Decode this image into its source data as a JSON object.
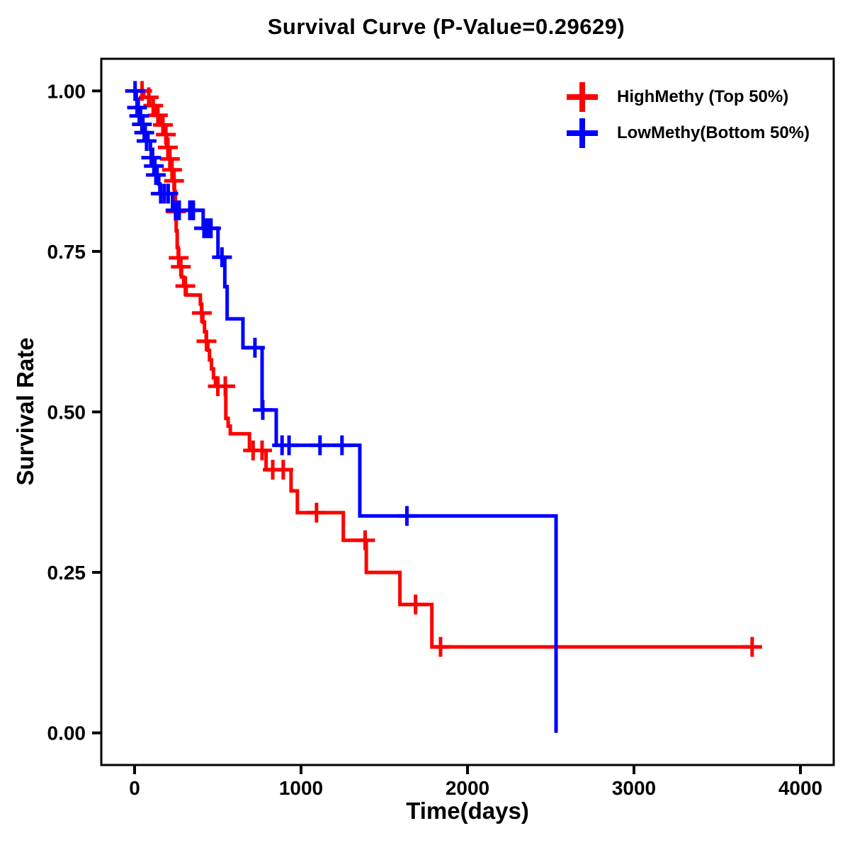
{
  "title": "Survival Curve (P-Value=0.29629)",
  "p_value": "0.29629",
  "chart_data": {
    "type": "line",
    "subtype": "kaplan-meier-step-curve",
    "title": "Survival Curve (P-Value=0.29629)",
    "xlabel": "Time(days)",
    "ylabel": "Survival Rate",
    "xlim": [
      -200,
      4200
    ],
    "ylim": [
      -0.05,
      1.05
    ],
    "grid": "off",
    "legend_position": "top-right-inside",
    "x_ticks": [
      {
        "value": 0,
        "label": "0"
      },
      {
        "value": 1000,
        "label": "1000"
      },
      {
        "value": 2000,
        "label": "2000"
      },
      {
        "value": 3000,
        "label": "3000"
      },
      {
        "value": 4000,
        "label": "4000"
      }
    ],
    "y_ticks": [
      {
        "value": 0.0,
        "label": "0.00"
      },
      {
        "value": 0.25,
        "label": "0.25"
      },
      {
        "value": 0.5,
        "label": "0.50"
      },
      {
        "value": 0.75,
        "label": "0.75"
      },
      {
        "value": 1.0,
        "label": "1.00"
      }
    ],
    "series": [
      {
        "name": "HighMethy (Top 50%)",
        "color": "#FF0000",
        "end_time": 3722,
        "steps": [
          [
            0,
            1.0
          ],
          [
            55,
            0.99
          ],
          [
            90,
            0.977
          ],
          [
            120,
            0.962
          ],
          [
            150,
            0.947
          ],
          [
            178,
            0.932
          ],
          [
            192,
            0.912
          ],
          [
            205,
            0.894
          ],
          [
            218,
            0.877
          ],
          [
            230,
            0.86
          ],
          [
            240,
            0.843
          ],
          [
            245,
            0.812
          ],
          [
            250,
            0.782
          ],
          [
            256,
            0.756
          ],
          [
            262,
            0.74
          ],
          [
            270,
            0.726
          ],
          [
            282,
            0.71
          ],
          [
            295,
            0.696
          ],
          [
            310,
            0.682
          ],
          [
            395,
            0.668
          ],
          [
            402,
            0.654
          ],
          [
            410,
            0.64
          ],
          [
            420,
            0.625
          ],
          [
            430,
            0.61
          ],
          [
            440,
            0.596
          ],
          [
            450,
            0.581
          ],
          [
            462,
            0.567
          ],
          [
            474,
            0.553
          ],
          [
            486,
            0.54
          ],
          [
            548,
            0.49
          ],
          [
            562,
            0.478
          ],
          [
            575,
            0.466
          ],
          [
            690,
            0.44
          ],
          [
            790,
            0.41
          ],
          [
            940,
            0.377
          ],
          [
            978,
            0.343
          ],
          [
            1254,
            0.3
          ],
          [
            1392,
            0.25
          ],
          [
            1594,
            0.2
          ],
          [
            1786,
            0.134
          ]
        ],
        "censors": [
          [
            45,
            1.0
          ],
          [
            85,
            0.99
          ],
          [
            112,
            0.977
          ],
          [
            140,
            0.962
          ],
          [
            170,
            0.947
          ],
          [
            188,
            0.932
          ],
          [
            200,
            0.912
          ],
          [
            212,
            0.894
          ],
          [
            225,
            0.877
          ],
          [
            237,
            0.86
          ],
          [
            248,
            0.812
          ],
          [
            265,
            0.74
          ],
          [
            278,
            0.726
          ],
          [
            305,
            0.696
          ],
          [
            404,
            0.654
          ],
          [
            432,
            0.61
          ],
          [
            500,
            0.54
          ],
          [
            545,
            0.54
          ],
          [
            712,
            0.44
          ],
          [
            766,
            0.44
          ],
          [
            830,
            0.41
          ],
          [
            893,
            0.41
          ],
          [
            1093,
            0.343
          ],
          [
            1385,
            0.3
          ],
          [
            1688,
            0.2
          ],
          [
            1838,
            0.134
          ],
          [
            3710,
            0.134
          ]
        ]
      },
      {
        "name": "LowMethy(Bottom 50%)",
        "color": "#0000FF",
        "end_time": 2532,
        "steps": [
          [
            0,
            1.0
          ],
          [
            10,
            0.987
          ],
          [
            22,
            0.974
          ],
          [
            36,
            0.961
          ],
          [
            50,
            0.948
          ],
          [
            64,
            0.935
          ],
          [
            80,
            0.922
          ],
          [
            95,
            0.909
          ],
          [
            108,
            0.896
          ],
          [
            122,
            0.883
          ],
          [
            135,
            0.869
          ],
          [
            145,
            0.855
          ],
          [
            152,
            0.84
          ],
          [
            228,
            0.814
          ],
          [
            412,
            0.786
          ],
          [
            501,
            0.741
          ],
          [
            542,
            0.695
          ],
          [
            556,
            0.645
          ],
          [
            651,
            0.6
          ],
          [
            766,
            0.503
          ],
          [
            851,
            0.448
          ],
          [
            1353,
            0.338
          ],
          [
            2532,
            0.0
          ]
        ],
        "censors": [
          [
            3,
            1.0
          ],
          [
            15,
            0.974
          ],
          [
            28,
            0.961
          ],
          [
            44,
            0.948
          ],
          [
            58,
            0.935
          ],
          [
            72,
            0.922
          ],
          [
            100,
            0.896
          ],
          [
            116,
            0.883
          ],
          [
            128,
            0.869
          ],
          [
            157,
            0.84
          ],
          [
            179,
            0.84
          ],
          [
            202,
            0.84
          ],
          [
            246,
            0.814
          ],
          [
            268,
            0.814
          ],
          [
            332,
            0.814
          ],
          [
            353,
            0.814
          ],
          [
            417,
            0.786
          ],
          [
            438,
            0.786
          ],
          [
            459,
            0.786
          ],
          [
            525,
            0.741
          ],
          [
            723,
            0.6
          ],
          [
            770,
            0.503
          ],
          [
            886,
            0.448
          ],
          [
            928,
            0.448
          ],
          [
            1114,
            0.448
          ],
          [
            1246,
            0.448
          ],
          [
            1636,
            0.338
          ]
        ]
      }
    ]
  }
}
